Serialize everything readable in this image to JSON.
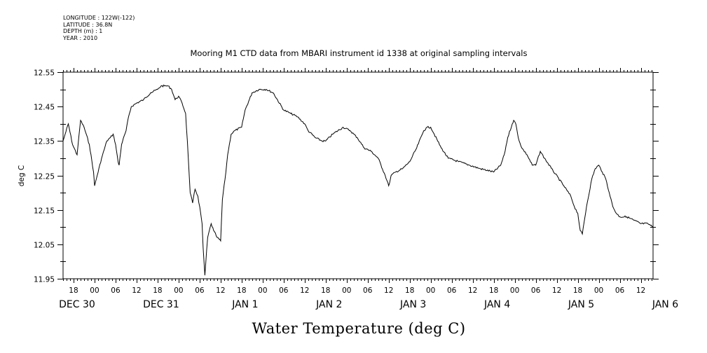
{
  "meta": {
    "longitude": "LONGITUDE : 122W(-122)",
    "latitude": "LATITUDE : 36.8N",
    "depth": "DEPTH (m) : 1",
    "year": "YEAR : 2010"
  },
  "chart_data": {
    "type": "line",
    "title": "Mooring M1 CTD data from MBARI instrument id 1338 at original sampling intervals",
    "xlabel": "Water Temperature (deg C)",
    "ylabel": "deg C",
    "xlim_hours": [
      -9,
      159.5
    ],
    "ylim": [
      11.95,
      12.55
    ],
    "y_ticks": [
      11.95,
      12.05,
      12.15,
      12.25,
      12.35,
      12.45,
      12.55
    ],
    "y_tick_labels": [
      "11.95",
      "12.05",
      "12.15",
      "12.25",
      "12.35",
      "12.45",
      "12.55"
    ],
    "hour_ticks": [
      {
        "h": -6,
        "label": "18"
      },
      {
        "h": 0,
        "label": "00"
      },
      {
        "h": 6,
        "label": "06"
      },
      {
        "h": 12,
        "label": "12"
      },
      {
        "h": 18,
        "label": "18"
      },
      {
        "h": 24,
        "label": "00"
      },
      {
        "h": 30,
        "label": "06"
      },
      {
        "h": 36,
        "label": "12"
      },
      {
        "h": 42,
        "label": "18"
      },
      {
        "h": 48,
        "label": "00"
      },
      {
        "h": 54,
        "label": "06"
      },
      {
        "h": 60,
        "label": "12"
      },
      {
        "h": 66,
        "label": "18"
      },
      {
        "h": 72,
        "label": "00"
      },
      {
        "h": 78,
        "label": "06"
      },
      {
        "h": 84,
        "label": "12"
      },
      {
        "h": 90,
        "label": "18"
      },
      {
        "h": 96,
        "label": "00"
      },
      {
        "h": 102,
        "label": "06"
      },
      {
        "h": 108,
        "label": "12"
      },
      {
        "h": 114,
        "label": "18"
      },
      {
        "h": 120,
        "label": "00"
      },
      {
        "h": 126,
        "label": "06"
      },
      {
        "h": 132,
        "label": "12"
      },
      {
        "h": 138,
        "label": "18"
      },
      {
        "h": 144,
        "label": "00"
      },
      {
        "h": 150,
        "label": "06"
      },
      {
        "h": 156,
        "label": "12"
      }
    ],
    "day_labels": [
      {
        "h": -5,
        "label": "DEC 30"
      },
      {
        "h": 19,
        "label": "DEC 31"
      },
      {
        "h": 43,
        "label": "JAN  1"
      },
      {
        "h": 67,
        "label": "JAN  2"
      },
      {
        "h": 91,
        "label": "JAN  3"
      },
      {
        "h": 115,
        "label": "JAN  4"
      },
      {
        "h": 139,
        "label": "JAN  5"
      },
      {
        "h": 163,
        "label": "JAN  6"
      }
    ],
    "series": [
      {
        "x": [
          -9,
          -8.4,
          -7.5,
          -6.3,
          -5,
          -4,
          -3,
          -1.5,
          -0.3,
          0,
          0.5,
          2,
          3.5,
          4.5,
          5.3,
          6,
          6.7,
          7,
          7.7,
          9,
          9.7,
          10.5,
          12,
          14,
          16,
          18,
          19,
          20,
          21,
          22,
          23,
          24,
          25,
          26,
          26.5,
          27.3,
          28,
          28.7,
          29.5,
          30.3,
          30.7,
          31,
          31.5,
          32.3,
          33.3,
          34,
          35,
          36,
          36.5,
          37.5,
          38,
          39,
          40,
          42,
          43,
          45,
          47,
          49,
          51,
          54,
          56,
          58,
          60,
          61,
          63,
          65,
          66,
          68,
          71,
          73,
          75,
          77,
          79,
          81,
          83,
          84,
          84.5,
          84.7,
          86,
          88,
          90,
          92,
          94,
          95,
          96,
          97,
          99,
          101,
          104,
          107,
          110,
          114,
          116,
          117,
          118,
          119.3,
          119.7,
          120.3,
          121,
          122,
          123.5,
          125,
          126,
          127.3,
          128.5,
          130.5,
          134,
          136,
          137,
          138,
          138.7,
          139.3,
          140.5,
          142,
          143,
          144,
          145,
          146,
          147,
          148,
          149,
          150,
          152,
          154,
          156,
          158,
          159.5
        ],
        "y": [
          12.35,
          12.37,
          12.4,
          12.34,
          12.31,
          12.41,
          12.39,
          12.34,
          12.26,
          12.22,
          12.24,
          12.3,
          12.35,
          12.36,
          12.37,
          12.34,
          12.29,
          12.28,
          12.34,
          12.38,
          12.42,
          12.45,
          12.46,
          12.47,
          12.49,
          12.5,
          12.51,
          12.51,
          12.51,
          12.5,
          12.47,
          12.48,
          12.46,
          12.43,
          12.35,
          12.2,
          12.17,
          12.21,
          12.19,
          12.14,
          12.11,
          12.04,
          11.96,
          12.07,
          12.11,
          12.09,
          12.07,
          12.06,
          12.18,
          12.26,
          12.31,
          12.37,
          12.38,
          12.39,
          12.44,
          12.49,
          12.5,
          12.5,
          12.49,
          12.44,
          12.43,
          12.42,
          12.4,
          12.38,
          12.36,
          12.35,
          12.35,
          12.37,
          12.39,
          12.38,
          12.36,
          12.33,
          12.32,
          12.3,
          12.25,
          12.22,
          12.24,
          12.25,
          12.26,
          12.27,
          12.29,
          12.33,
          12.38,
          12.39,
          12.39,
          12.37,
          12.33,
          12.3,
          12.29,
          12.28,
          12.27,
          12.26,
          12.28,
          12.31,
          12.36,
          12.4,
          12.41,
          12.4,
          12.36,
          12.33,
          12.31,
          12.28,
          12.28,
          12.32,
          12.3,
          12.27,
          12.22,
          12.19,
          12.16,
          12.14,
          12.09,
          12.08,
          12.16,
          12.24,
          12.27,
          12.28,
          12.26,
          12.24,
          12.2,
          12.16,
          12.14,
          12.13,
          12.13,
          12.12,
          12.11,
          12.11,
          12.1
        ]
      }
    ],
    "grid": false
  }
}
